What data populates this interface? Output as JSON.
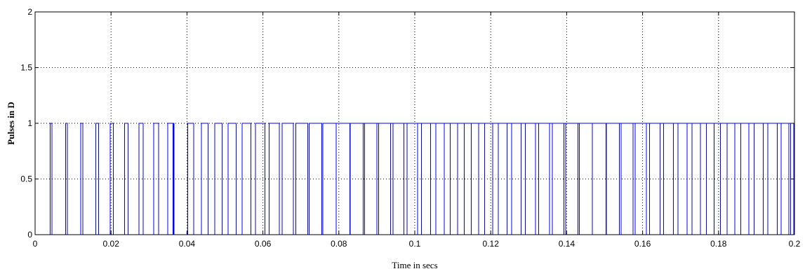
{
  "chart_data": {
    "type": "line",
    "title": "",
    "xlabel": "Time in secs",
    "ylabel": "Pulses in D",
    "xlim": [
      0,
      0.2
    ],
    "ylim": [
      0,
      2
    ],
    "grid": true,
    "x_ticks": [
      0,
      0.02,
      0.04,
      0.06,
      0.08,
      0.1,
      0.12,
      0.14,
      0.16,
      0.18,
      0.2
    ],
    "x_tick_labels": [
      "0",
      "0.02",
      "0.04",
      "0.06",
      "0.08",
      "0.1",
      "0.12",
      "0.14",
      "0.16",
      "0.18",
      "0.2"
    ],
    "y_ticks": [
      0,
      0.5,
      1,
      1.5,
      2
    ],
    "y_tick_labels": [
      "0",
      "0.5",
      "1",
      "1.5",
      "2"
    ],
    "line_color": "#0000ff",
    "series": [
      {
        "pulses_low": 0,
        "pulses_high": 1,
        "rising_edges": [
          0.004,
          0.008,
          0.012,
          0.016,
          0.0198,
          0.0236,
          0.0274,
          0.0312,
          0.0349,
          0.0364,
          0.0402,
          0.0438,
          0.0473,
          0.0508,
          0.0545,
          0.058,
          0.0616,
          0.0651,
          0.0687,
          0.0722,
          0.0758,
          0.0793,
          0.0829,
          0.0864,
          0.09,
          0.0936,
          0.0971,
          0.1007,
          0.1042,
          0.1078,
          0.1113,
          0.1149,
          0.1184,
          0.122,
          0.1255,
          0.1291,
          0.1326,
          0.1362,
          0.1397,
          0.1433,
          0.1468,
          0.1504,
          0.1539,
          0.1575,
          0.161,
          0.1646,
          0.1681,
          0.1717,
          0.1752,
          0.1788,
          0.1823,
          0.1859,
          0.1894,
          0.193,
          0.1965
        ],
        "falling_edges": [
          0.0044,
          0.0085,
          0.0126,
          0.0167,
          0.0206,
          0.0245,
          0.0285,
          0.0325,
          0.0363,
          0.0366,
          0.0418,
          0.0456,
          0.0493,
          0.053,
          0.0568,
          0.0605,
          0.0643,
          0.068,
          0.0718,
          0.0755,
          0.0793,
          0.083,
          0.0868,
          0.0905,
          0.0943,
          0.098,
          0.1018,
          0.1055,
          0.1093,
          0.113,
          0.1168,
          0.1205,
          0.1243,
          0.128,
          0.1318,
          0.1355,
          0.1393,
          0.143,
          0.1468,
          0.1505,
          0.1543,
          0.158,
          0.1618,
          0.1655,
          0.1693,
          0.173,
          0.1768,
          0.1805,
          0.1843,
          0.188,
          0.1918,
          0.1955,
          0.1985,
          0.199,
          0.1998
        ]
      }
    ]
  }
}
